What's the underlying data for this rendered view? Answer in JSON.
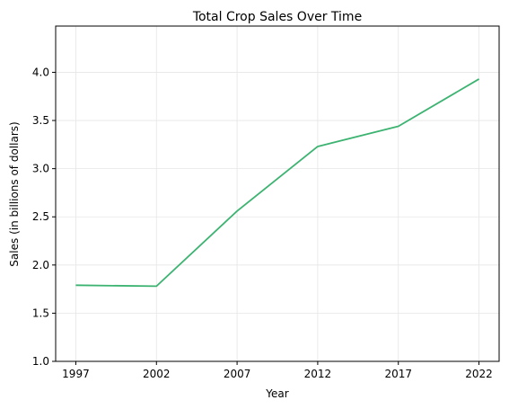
{
  "chart_data": {
    "type": "line",
    "title": "Total Crop Sales Over Time",
    "xlabel": "Year",
    "ylabel": "Sales (in billions of dollars)",
    "x": [
      1997,
      2002,
      2007,
      2012,
      2017,
      2022
    ],
    "series": [
      {
        "values": [
          1.79,
          1.78,
          2.56,
          3.23,
          3.44,
          3.93
        ],
        "color": "#3cb371"
      }
    ],
    "xticks": [
      "1997",
      "2002",
      "2007",
      "2012",
      "2017",
      "2022"
    ],
    "yticks": [
      "1.0",
      "1.5",
      "2.0",
      "2.5",
      "3.0",
      "3.5",
      "4.0"
    ],
    "xlim": [
      1995.75,
      2023.25
    ],
    "ylim": [
      1.0,
      4.48
    ],
    "grid": true
  }
}
